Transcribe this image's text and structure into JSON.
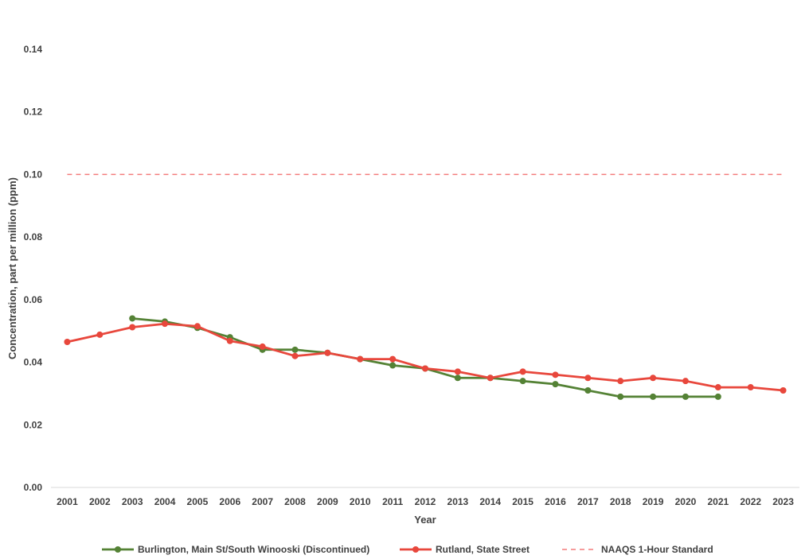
{
  "chart_data": {
    "type": "line",
    "title": "",
    "xlabel": "Year",
    "ylabel": "Concentration, part per million (ppm)",
    "ylim": [
      0,
      0.14
    ],
    "yticks": [
      "0.00",
      "0.02",
      "0.04",
      "0.06",
      "0.08",
      "0.10",
      "0.12",
      "0.14"
    ],
    "categories": [
      "2001",
      "2002",
      "2003",
      "2004",
      "2005",
      "2006",
      "2007",
      "2008",
      "2009",
      "2010",
      "2011",
      "2012",
      "2013",
      "2014",
      "2015",
      "2016",
      "2017",
      "2018",
      "2019",
      "2020",
      "2021",
      "2022",
      "2023"
    ],
    "grid": false,
    "legend_position": "bottom",
    "series": [
      {
        "name": "Burlington, Main St/South Winooski (Discontinued)",
        "color": "#548235",
        "style": "line-markers",
        "values": [
          null,
          null,
          0.054,
          0.053,
          0.051,
          0.048,
          0.044,
          0.044,
          0.043,
          0.041,
          0.039,
          0.038,
          0.035,
          0.035,
          0.034,
          0.033,
          0.031,
          0.029,
          0.029,
          0.029,
          0.029,
          null,
          null
        ]
      },
      {
        "name": "Rutland, State Street",
        "color": "#e8473c",
        "style": "line-markers",
        "values": [
          0.0465,
          0.0488,
          0.0512,
          0.0523,
          0.0515,
          0.0468,
          0.045,
          0.042,
          0.043,
          0.041,
          0.041,
          0.038,
          0.037,
          0.035,
          0.037,
          0.036,
          0.035,
          0.034,
          0.035,
          0.034,
          0.032,
          0.032,
          0.031
        ]
      },
      {
        "name": "NAAQS 1-Hour Standard",
        "color": "#f47c7c",
        "style": "dashed",
        "values": [
          0.1,
          0.1,
          0.1,
          0.1,
          0.1,
          0.1,
          0.1,
          0.1,
          0.1,
          0.1,
          0.1,
          0.1,
          0.1,
          0.1,
          0.1,
          0.1,
          0.1,
          0.1,
          0.1,
          0.1,
          0.1,
          0.1,
          0.1
        ]
      }
    ]
  }
}
